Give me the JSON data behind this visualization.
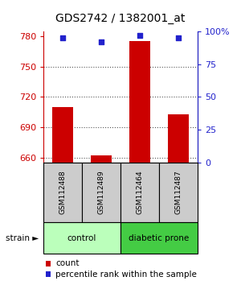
{
  "title": "GDS2742 / 1382001_at",
  "samples": [
    "GSM112488",
    "GSM112489",
    "GSM112464",
    "GSM112487"
  ],
  "counts": [
    710,
    662,
    775,
    703
  ],
  "percentiles": [
    95,
    92,
    97,
    95
  ],
  "ylim_left": [
    655,
    785
  ],
  "yticks_left": [
    660,
    690,
    720,
    750,
    780
  ],
  "ylim_right": [
    0,
    100
  ],
  "yticks_right": [
    0,
    25,
    50,
    75,
    100
  ],
  "ytick_right_labels": [
    "0",
    "25",
    "50",
    "75",
    "100%"
  ],
  "bar_color": "#cc0000",
  "dot_color": "#2222cc",
  "groups": [
    {
      "label": "control",
      "indices": [
        0,
        1
      ],
      "color": "#bbffbb"
    },
    {
      "label": "diabetic prone",
      "indices": [
        2,
        3
      ],
      "color": "#44cc44"
    }
  ],
  "sample_box_color": "#cccccc",
  "left_axis_color": "#cc0000",
  "right_axis_color": "#2222cc",
  "dotted_line_color": "#555555",
  "background_color": "#ffffff",
  "title_fontsize": 10,
  "tick_fontsize": 8,
  "bar_width": 0.55
}
